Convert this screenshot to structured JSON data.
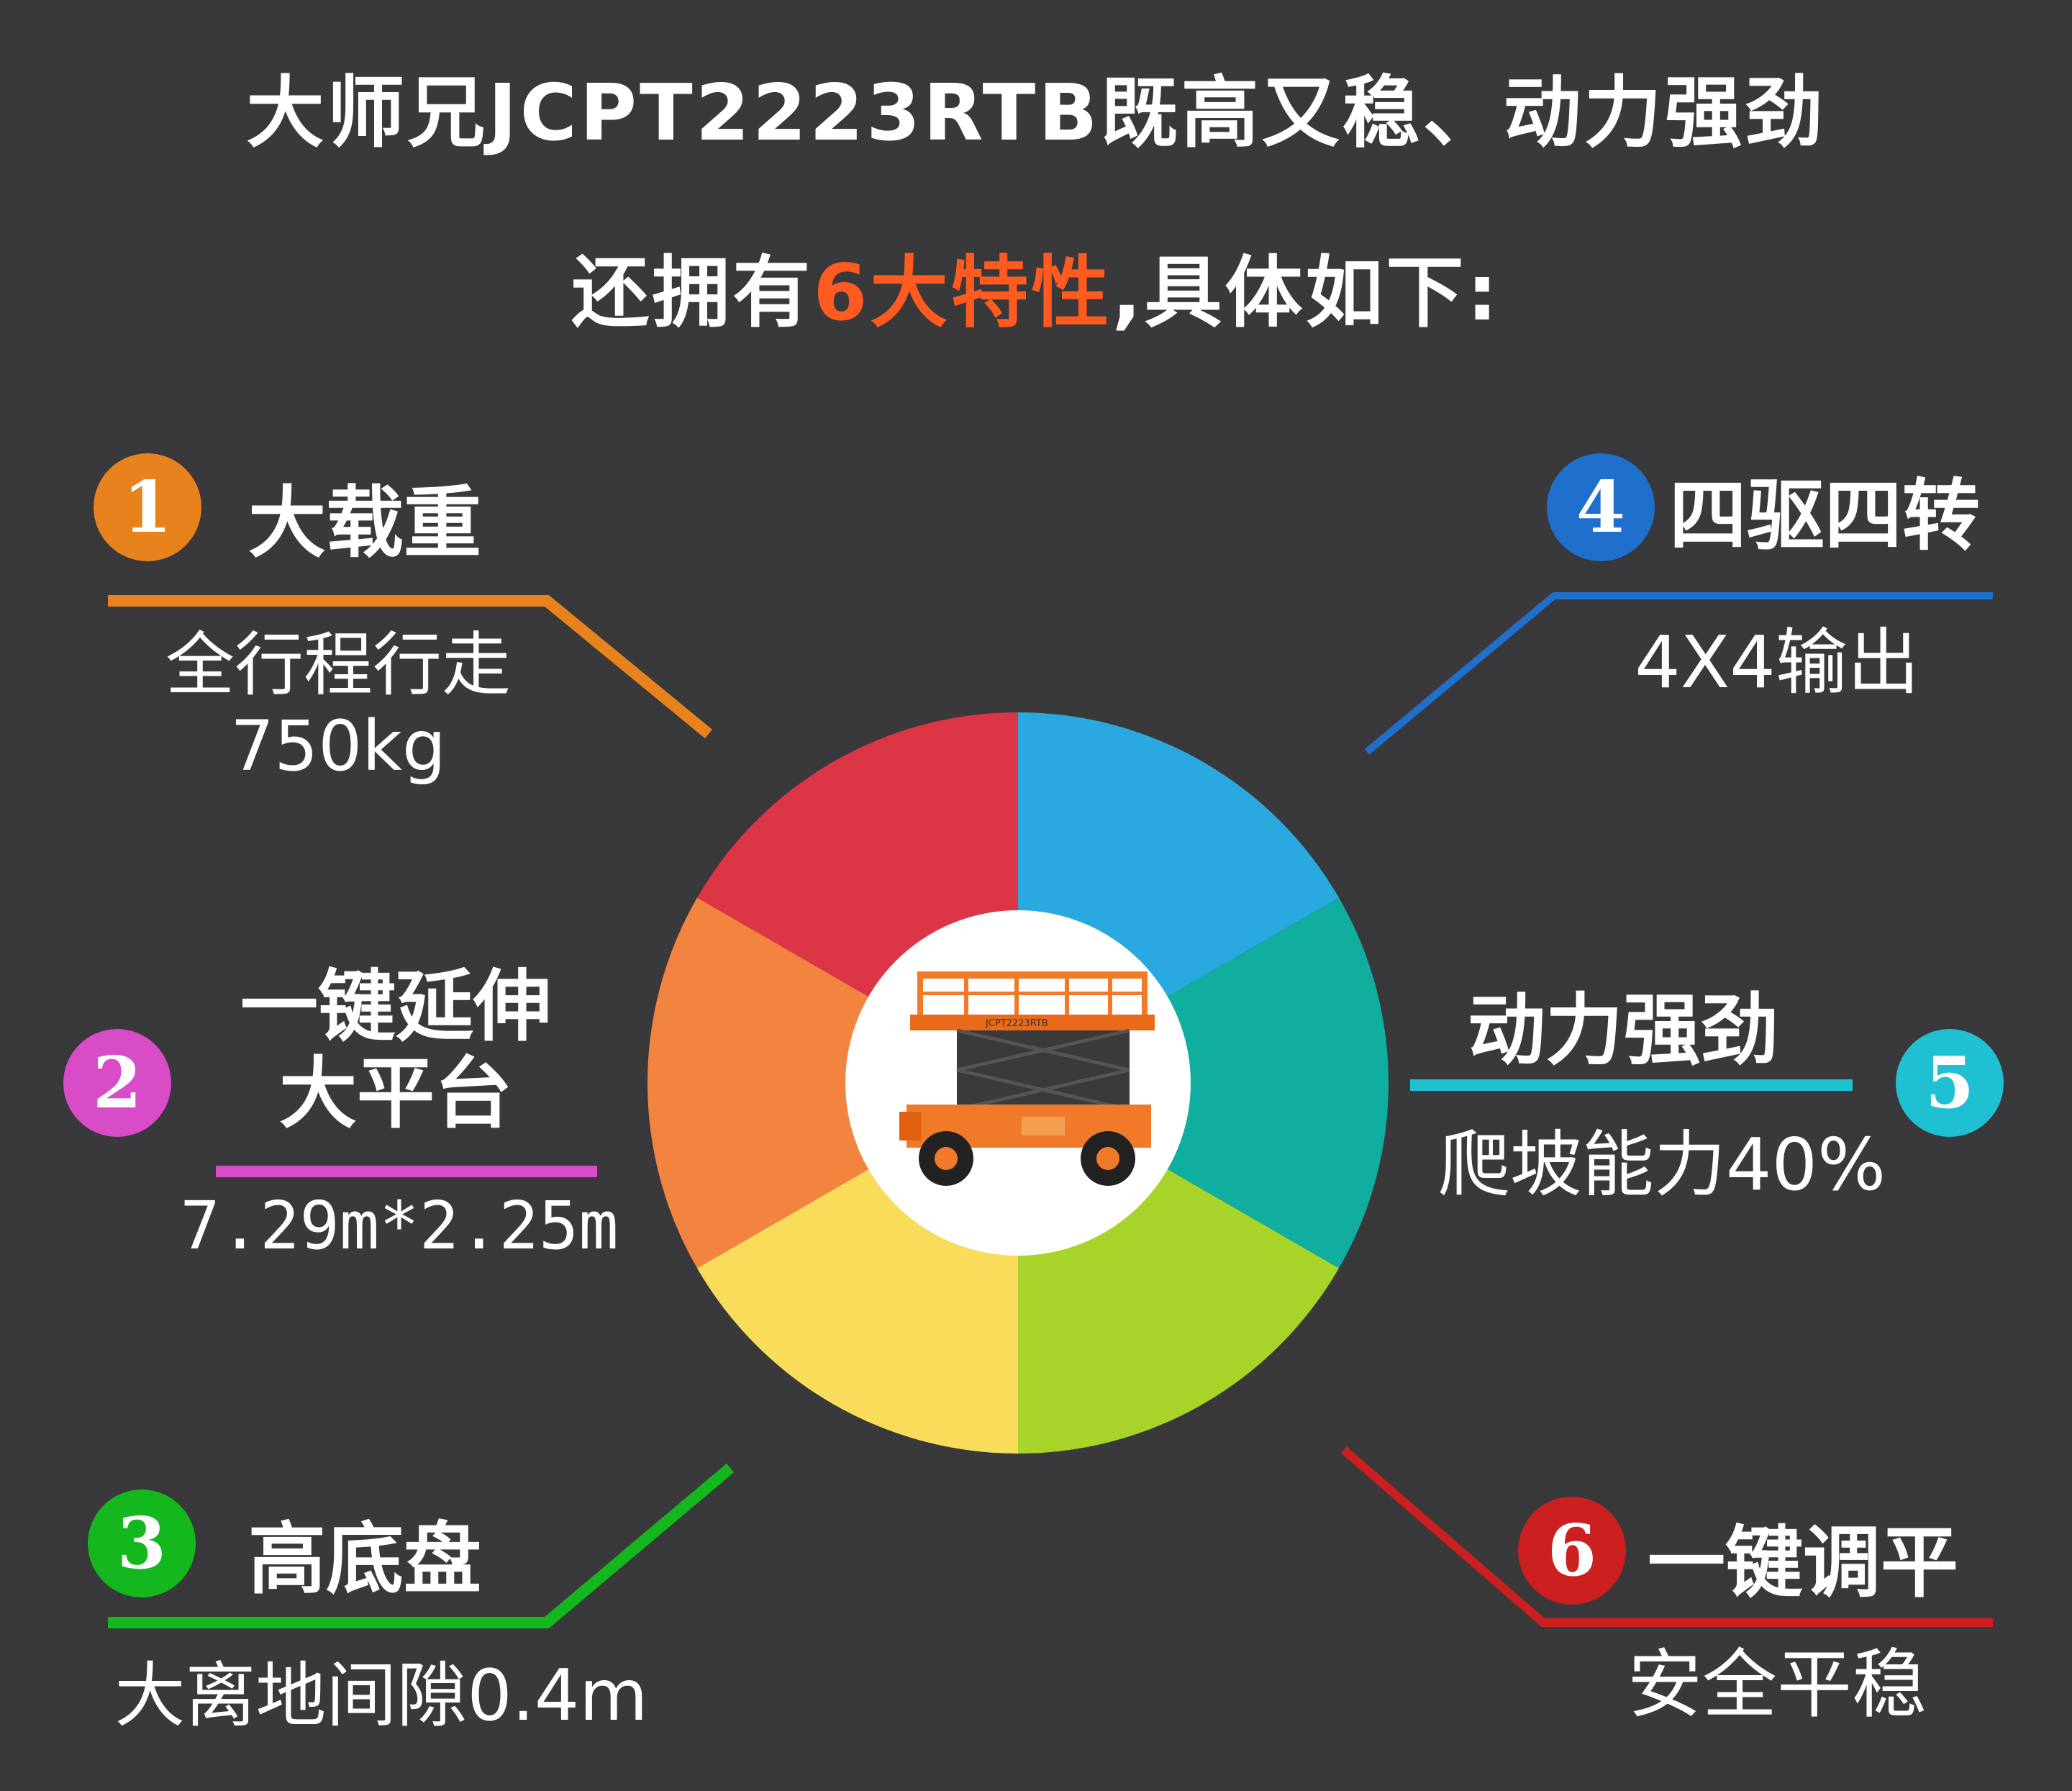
{
  "header": {
    "line1": "大师兄JCPT2223RTB既高又稳、动力强劲",
    "line2_prefix": "还拥有",
    "line2_highlight": "6大特性",
    "line2_suffix": ",具体如下:"
  },
  "features": [
    {
      "number": "1",
      "title": "大载重",
      "desc_lines": [
        "全行程行走",
        "750kg"
      ],
      "color": "#e8821c"
    },
    {
      "number": "2",
      "title_lines": [
        "一键延伸",
        "大平台"
      ],
      "desc_lines": [
        "7.29m*2.25m"
      ],
      "color": "#d84cc8"
    },
    {
      "number": "3",
      "title": "高底盘",
      "desc_lines": [
        "大离地间隙0.4m"
      ],
      "color": "#14b81e"
    },
    {
      "number": "4",
      "title": "四驱四转",
      "desc_lines": [
        "4X4输出"
      ],
      "color": "#1f6fcc"
    },
    {
      "number": "5",
      "title": "动力强劲",
      "desc_lines": [
        "爬坡能力40%"
      ],
      "color": "#1fc0d2"
    },
    {
      "number": "6",
      "title": "一键调平",
      "desc_lines": [
        "安全平稳"
      ],
      "color": "#cc1f1f"
    }
  ],
  "wheel": {
    "segments": [
      "#2aa8e0",
      "#0fae9e",
      "#a8d42a",
      "#f8dc5a",
      "#f2843f",
      "#dc3545"
    ]
  },
  "machine_label": "JCPT2223RTB"
}
